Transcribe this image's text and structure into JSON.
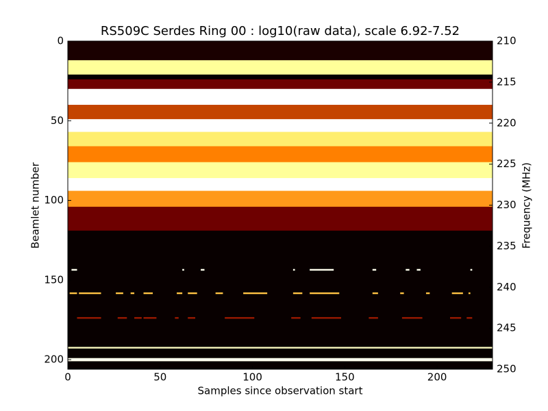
{
  "chart_data": {
    "type": "heatmap",
    "title": "RS509C Serdes Ring 00 : log10(raw data), scale 6.92-7.52",
    "xlabel": "Samples since observation start",
    "ylabel": "Beamlet number",
    "y2label": "Frequency (MHz)",
    "xlim": [
      0,
      230
    ],
    "xticks": [
      0,
      50,
      100,
      150,
      200
    ],
    "ylim": [
      0,
      206
    ],
    "yticks": [
      0,
      50,
      100,
      150,
      200
    ],
    "y_inverted": true,
    "y2lim": [
      210,
      250
    ],
    "y2ticks": [
      210,
      215,
      220,
      225,
      230,
      235,
      240,
      245,
      250
    ],
    "colormap": "afmhot",
    "clim": [
      6.92,
      7.52
    ],
    "bands": {
      "edges": [
        0,
        12,
        21,
        24,
        30,
        40,
        49,
        57,
        66,
        76,
        86,
        94,
        104,
        119,
        192,
        193,
        199,
        201,
        206
      ],
      "values": [
        6.95,
        7.4,
        6.93,
        7.05,
        7.52,
        7.15,
        7.52,
        7.35,
        7.22,
        7.4,
        7.52,
        7.25,
        7.05,
        6.93,
        7.45,
        6.93,
        7.5,
        6.93
      ]
    },
    "streaks": [
      {
        "y": 143.6,
        "value": 7.5,
        "segments": [
          [
            2,
            5
          ],
          [
            62,
            63
          ],
          [
            72,
            74
          ],
          [
            122,
            123
          ],
          [
            131,
            144
          ],
          [
            165,
            167
          ],
          [
            183,
            185
          ],
          [
            189,
            191
          ],
          [
            218,
            219
          ]
        ]
      },
      {
        "y": 158.3,
        "value": 7.3,
        "segments": [
          [
            1,
            5
          ],
          [
            6,
            18
          ],
          [
            26,
            30
          ],
          [
            34,
            36
          ],
          [
            41,
            46
          ],
          [
            59,
            62
          ],
          [
            65,
            70
          ],
          [
            80,
            84
          ],
          [
            95,
            108
          ],
          [
            122,
            127
          ],
          [
            131,
            147
          ],
          [
            165,
            168
          ],
          [
            180,
            182
          ],
          [
            194,
            196
          ],
          [
            208,
            214
          ],
          [
            217,
            218
          ]
        ]
      },
      {
        "y": 173.8,
        "value": 7.1,
        "segments": [
          [
            5,
            18
          ],
          [
            27,
            32
          ],
          [
            36,
            40
          ],
          [
            41,
            48
          ],
          [
            58,
            60
          ],
          [
            65,
            69
          ],
          [
            85,
            101
          ],
          [
            121,
            126
          ],
          [
            132,
            148
          ],
          [
            163,
            168
          ],
          [
            181,
            192
          ],
          [
            207,
            213
          ],
          [
            216,
            219
          ]
        ]
      }
    ]
  }
}
